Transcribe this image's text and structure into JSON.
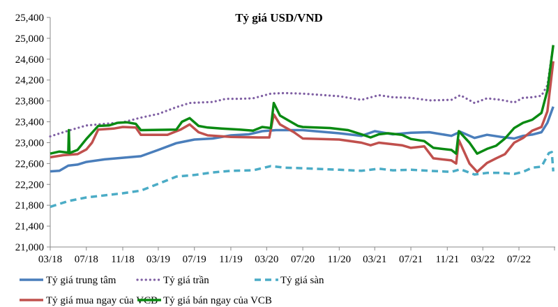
{
  "chart_data": {
    "type": "line",
    "title": "Tỷ giá USD/VND",
    "xlabel": "",
    "ylabel": "",
    "ylim": [
      21000,
      25400
    ],
    "yticks": [
      21000,
      21400,
      21800,
      22200,
      22600,
      23000,
      23400,
      23800,
      24200,
      24600,
      25000,
      25400
    ],
    "ytick_labels": [
      "21,000",
      "21,400",
      "21,800",
      "22,200",
      "22,600",
      "23,000",
      "23,400",
      "23,800",
      "24,200",
      "24,600",
      "25,000",
      "25,400"
    ],
    "xlim": [
      "2018-03-01",
      "2022-11-01"
    ],
    "xticks": [
      "2018-03-01",
      "2018-07-01",
      "2018-11-01",
      "2019-03-01",
      "2019-07-01",
      "2019-11-01",
      "2020-03-01",
      "2020-07-01",
      "2020-11-01",
      "2021-03-01",
      "2021-07-01",
      "2021-11-01",
      "2022-03-01",
      "2022-07-01"
    ],
    "xtick_labels": [
      "03/18",
      "07/18",
      "11/18",
      "03/19",
      "07/19",
      "11/19",
      "03/20",
      "07/20",
      "11/20",
      "03/21",
      "07/21",
      "11/21",
      "03/22",
      "07/22"
    ],
    "grid": false,
    "legend": "bottom",
    "series": [
      {
        "name": "Tỷ giá trung tâm",
        "color": "#4a7ebb",
        "style": "solid",
        "points": [
          [
            "2018-03-01",
            22450
          ],
          [
            "2018-04-01",
            22460
          ],
          [
            "2018-05-01",
            22560
          ],
          [
            "2018-06-01",
            22580
          ],
          [
            "2018-07-01",
            22630
          ],
          [
            "2018-09-01",
            22680
          ],
          [
            "2018-11-01",
            22710
          ],
          [
            "2019-01-01",
            22740
          ],
          [
            "2019-03-01",
            22860
          ],
          [
            "2019-05-01",
            22990
          ],
          [
            "2019-07-01",
            23060
          ],
          [
            "2019-09-01",
            23080
          ],
          [
            "2019-11-01",
            23140
          ],
          [
            "2020-01-01",
            23160
          ],
          [
            "2020-02-15",
            23220
          ],
          [
            "2020-04-01",
            23240
          ],
          [
            "2020-07-01",
            23240
          ],
          [
            "2020-11-01",
            23180
          ],
          [
            "2021-01-15",
            23130
          ],
          [
            "2021-03-01",
            23220
          ],
          [
            "2021-05-01",
            23160
          ],
          [
            "2021-07-01",
            23190
          ],
          [
            "2021-09-01",
            23200
          ],
          [
            "2021-11-15",
            23130
          ],
          [
            "2021-12-15",
            23210
          ],
          [
            "2022-02-01",
            23090
          ],
          [
            "2022-03-15",
            23150
          ],
          [
            "2022-05-01",
            23110
          ],
          [
            "2022-06-15",
            23080
          ],
          [
            "2022-07-15",
            23130
          ],
          [
            "2022-08-15",
            23155
          ],
          [
            "2022-09-15",
            23200
          ],
          [
            "2022-10-05",
            23380
          ],
          [
            "2022-10-25",
            23690
          ]
        ]
      },
      {
        "name": "Tỷ giá trần",
        "color": "#7f5fa3",
        "style": "dotted",
        "points": [
          [
            "2018-03-01",
            23120
          ],
          [
            "2018-05-01",
            23230
          ],
          [
            "2018-07-01",
            23330
          ],
          [
            "2018-11-01",
            23390
          ],
          [
            "2019-01-01",
            23480
          ],
          [
            "2019-03-01",
            23550
          ],
          [
            "2019-05-01",
            23680
          ],
          [
            "2019-06-15",
            23760
          ],
          [
            "2019-09-01",
            23780
          ],
          [
            "2019-10-15",
            23840
          ],
          [
            "2019-12-01",
            23840
          ],
          [
            "2020-01-15",
            23850
          ],
          [
            "2020-03-15",
            23940
          ],
          [
            "2020-05-01",
            23950
          ],
          [
            "2020-07-01",
            23940
          ],
          [
            "2020-11-01",
            23890
          ],
          [
            "2021-01-15",
            23820
          ],
          [
            "2021-03-15",
            23910
          ],
          [
            "2021-05-01",
            23870
          ],
          [
            "2021-07-01",
            23860
          ],
          [
            "2021-09-01",
            23810
          ],
          [
            "2021-11-15",
            23820
          ],
          [
            "2021-12-15",
            23910
          ],
          [
            "2022-02-01",
            23760
          ],
          [
            "2022-03-15",
            23850
          ],
          [
            "2022-05-01",
            23820
          ],
          [
            "2022-06-15",
            23770
          ],
          [
            "2022-07-15",
            23860
          ],
          [
            "2022-08-15",
            23870
          ],
          [
            "2022-09-15",
            23900
          ],
          [
            "2022-10-05",
            24100
          ],
          [
            "2022-10-25",
            24870
          ]
        ]
      },
      {
        "name": "Tỷ giá sàn",
        "color": "#4bacc6",
        "style": "dashed",
        "points": [
          [
            "2018-03-01",
            21770
          ],
          [
            "2018-05-01",
            21880
          ],
          [
            "2018-07-01",
            21950
          ],
          [
            "2018-11-01",
            22030
          ],
          [
            "2019-01-01",
            22080
          ],
          [
            "2019-03-01",
            22210
          ],
          [
            "2019-05-01",
            22350
          ],
          [
            "2019-07-01",
            22380
          ],
          [
            "2019-09-01",
            22430
          ],
          [
            "2019-11-01",
            22460
          ],
          [
            "2020-01-15",
            22470
          ],
          [
            "2020-03-15",
            22550
          ],
          [
            "2020-05-01",
            22520
          ],
          [
            "2020-07-01",
            22510
          ],
          [
            "2020-11-01",
            22480
          ],
          [
            "2021-01-15",
            22460
          ],
          [
            "2021-03-15",
            22500
          ],
          [
            "2021-05-01",
            22470
          ],
          [
            "2021-07-01",
            22480
          ],
          [
            "2021-09-01",
            22460
          ],
          [
            "2021-11-15",
            22440
          ],
          [
            "2021-12-15",
            22490
          ],
          [
            "2022-02-01",
            22390
          ],
          [
            "2022-03-15",
            22420
          ],
          [
            "2022-05-01",
            22420
          ],
          [
            "2022-06-15",
            22400
          ],
          [
            "2022-07-15",
            22440
          ],
          [
            "2022-08-15",
            22520
          ],
          [
            "2022-09-15",
            22540
          ],
          [
            "2022-10-10",
            22800
          ],
          [
            "2022-10-20",
            22820
          ],
          [
            "2022-10-25",
            22450
          ]
        ]
      },
      {
        "name": "Tỷ giá mua ngay của VCB",
        "color": "#c0504d",
        "style": "solid",
        "points": [
          [
            "2018-03-01",
            22720
          ],
          [
            "2018-04-15",
            22760
          ],
          [
            "2018-06-01",
            22780
          ],
          [
            "2018-07-01",
            22870
          ],
          [
            "2018-07-20",
            23000
          ],
          [
            "2018-08-10",
            23250
          ],
          [
            "2018-10-01",
            23270
          ],
          [
            "2018-11-01",
            23300
          ],
          [
            "2018-12-15",
            23290
          ],
          [
            "2019-01-01",
            23150
          ],
          [
            "2019-04-01",
            23150
          ],
          [
            "2019-05-15",
            23250
          ],
          [
            "2019-06-15",
            23350
          ],
          [
            "2019-07-15",
            23200
          ],
          [
            "2019-08-15",
            23140
          ],
          [
            "2019-11-01",
            23110
          ],
          [
            "2020-02-01",
            23100
          ],
          [
            "2020-03-10",
            23100
          ],
          [
            "2020-03-25",
            23540
          ],
          [
            "2020-04-15",
            23350
          ],
          [
            "2020-06-01",
            23200
          ],
          [
            "2020-07-01",
            23080
          ],
          [
            "2020-11-01",
            23060
          ],
          [
            "2021-01-15",
            23000
          ],
          [
            "2021-02-15",
            22950
          ],
          [
            "2021-03-15",
            23000
          ],
          [
            "2021-06-01",
            22950
          ],
          [
            "2021-07-01",
            22900
          ],
          [
            "2021-08-15",
            22930
          ],
          [
            "2021-09-15",
            22700
          ],
          [
            "2021-11-15",
            22660
          ],
          [
            "2021-12-01",
            22600
          ],
          [
            "2021-12-10",
            23050
          ],
          [
            "2022-01-15",
            22600
          ],
          [
            "2022-02-10",
            22440
          ],
          [
            "2022-03-15",
            22610
          ],
          [
            "2022-04-15",
            22700
          ],
          [
            "2022-05-15",
            22780
          ],
          [
            "2022-06-15",
            23000
          ],
          [
            "2022-07-15",
            23090
          ],
          [
            "2022-08-15",
            23230
          ],
          [
            "2022-09-15",
            23300
          ],
          [
            "2022-10-05",
            23600
          ],
          [
            "2022-10-25",
            24560
          ]
        ]
      },
      {
        "name": "Tỷ giá bán ngay của VCB",
        "color": "#0a8a12",
        "style": "solid",
        "points": [
          [
            "2018-03-01",
            22790
          ],
          [
            "2018-04-01",
            22830
          ],
          [
            "2018-05-01",
            22810
          ],
          [
            "2018-05-03",
            23240
          ],
          [
            "2018-05-05",
            22800
          ],
          [
            "2018-06-01",
            22860
          ],
          [
            "2018-07-01",
            23070
          ],
          [
            "2018-08-10",
            23320
          ],
          [
            "2018-09-15",
            23330
          ],
          [
            "2018-10-15",
            23380
          ],
          [
            "2018-11-15",
            23390
          ],
          [
            "2018-12-15",
            23360
          ],
          [
            "2019-01-01",
            23240
          ],
          [
            "2019-05-01",
            23250
          ],
          [
            "2019-05-20",
            23400
          ],
          [
            "2019-06-15",
            23470
          ],
          [
            "2019-07-15",
            23320
          ],
          [
            "2019-08-15",
            23290
          ],
          [
            "2019-10-01",
            23270
          ],
          [
            "2019-12-01",
            23250
          ],
          [
            "2020-01-15",
            23230
          ],
          [
            "2020-02-15",
            23300
          ],
          [
            "2020-03-15",
            23280
          ],
          [
            "2020-03-25",
            23760
          ],
          [
            "2020-04-15",
            23520
          ],
          [
            "2020-05-15",
            23420
          ],
          [
            "2020-06-15",
            23320
          ],
          [
            "2020-07-01",
            23300
          ],
          [
            "2020-10-01",
            23280
          ],
          [
            "2020-12-01",
            23240
          ],
          [
            "2021-01-15",
            23160
          ],
          [
            "2021-02-15",
            23100
          ],
          [
            "2021-03-15",
            23160
          ],
          [
            "2021-04-15",
            23180
          ],
          [
            "2021-06-01",
            23150
          ],
          [
            "2021-07-01",
            23070
          ],
          [
            "2021-08-15",
            23030
          ],
          [
            "2021-09-15",
            22900
          ],
          [
            "2021-11-15",
            22860
          ],
          [
            "2021-12-01",
            22790
          ],
          [
            "2021-12-10",
            23220
          ],
          [
            "2022-01-15",
            23000
          ],
          [
            "2022-02-10",
            22790
          ],
          [
            "2022-03-15",
            22880
          ],
          [
            "2022-04-15",
            22940
          ],
          [
            "2022-05-15",
            23080
          ],
          [
            "2022-06-15",
            23280
          ],
          [
            "2022-07-15",
            23380
          ],
          [
            "2022-08-15",
            23440
          ],
          [
            "2022-09-15",
            23570
          ],
          [
            "2022-10-05",
            24000
          ],
          [
            "2022-10-25",
            24870
          ]
        ]
      }
    ]
  }
}
